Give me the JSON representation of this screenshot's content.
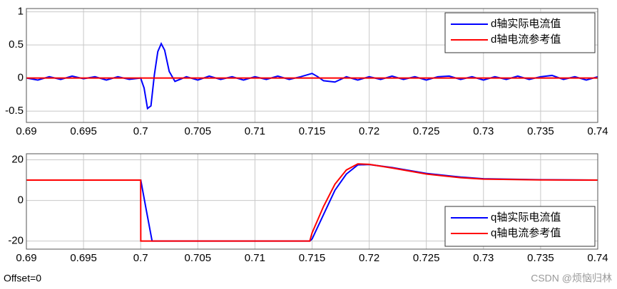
{
  "chart_data": [
    {
      "type": "line",
      "x": [
        0.69,
        0.691,
        0.692,
        0.693,
        0.694,
        0.695,
        0.696,
        0.697,
        0.698,
        0.699,
        0.7,
        0.7003,
        0.7006,
        0.7009,
        0.7012,
        0.7015,
        0.7018,
        0.7021,
        0.7025,
        0.703,
        0.704,
        0.705,
        0.706,
        0.707,
        0.708,
        0.709,
        0.71,
        0.711,
        0.712,
        0.713,
        0.714,
        0.715,
        0.7155,
        0.716,
        0.717,
        0.718,
        0.719,
        0.72,
        0.721,
        0.722,
        0.723,
        0.724,
        0.725,
        0.726,
        0.727,
        0.728,
        0.729,
        0.73,
        0.731,
        0.732,
        0.733,
        0.734,
        0.735,
        0.736,
        0.737,
        0.738,
        0.739,
        0.74
      ],
      "series": [
        {
          "name": "d轴实际电流值",
          "color": "#0000ff",
          "values": [
            0,
            -0.03,
            0.02,
            -0.02,
            0.03,
            -0.01,
            0.02,
            -0.03,
            0.02,
            -0.02,
            0,
            -0.15,
            -0.46,
            -0.42,
            0.05,
            0.4,
            0.52,
            0.42,
            0.1,
            -0.05,
            0.02,
            -0.03,
            0.03,
            -0.02,
            0.02,
            -0.03,
            0.02,
            -0.02,
            0.03,
            -0.02,
            0.02,
            0.07,
            0.02,
            -0.04,
            -0.06,
            0.02,
            -0.03,
            0.02,
            -0.02,
            0.03,
            -0.02,
            0.02,
            -0.03,
            0.02,
            0.03,
            -0.02,
            0.02,
            -0.03,
            0.02,
            -0.02,
            0.03,
            -0.02,
            0.02,
            0.04,
            -0.02,
            0.02,
            -0.03,
            0.02
          ]
        },
        {
          "name": "d轴电流参考值",
          "color": "#ff0000",
          "values": [
            0,
            0,
            0,
            0,
            0,
            0,
            0,
            0,
            0,
            0,
            0,
            0,
            0,
            0,
            0,
            0,
            0,
            0,
            0,
            0,
            0,
            0,
            0,
            0,
            0,
            0,
            0,
            0,
            0,
            0,
            0,
            0,
            0,
            0,
            0,
            0,
            0,
            0,
            0,
            0,
            0,
            0,
            0,
            0,
            0,
            0,
            0,
            0,
            0,
            0,
            0,
            0,
            0,
            0,
            0,
            0,
            0,
            0
          ]
        }
      ],
      "xlim": [
        0.69,
        0.74
      ],
      "xticks": [
        0.69,
        0.695,
        0.7,
        0.705,
        0.71,
        0.715,
        0.72,
        0.725,
        0.73,
        0.735,
        0.74
      ],
      "ylim": [
        -0.67,
        1.05
      ],
      "yticks": [
        -0.5,
        0,
        0.5,
        1
      ],
      "grid": true,
      "legend": "upper-right"
    },
    {
      "type": "line",
      "x": [
        0.69,
        0.7,
        0.70001,
        0.7005,
        0.701,
        0.7148,
        0.715,
        0.716,
        0.717,
        0.718,
        0.719,
        0.72,
        0.722,
        0.725,
        0.728,
        0.73,
        0.735,
        0.74
      ],
      "series": [
        {
          "name": "q轴实际电流值",
          "color": "#0000ff",
          "values": [
            10,
            10,
            10,
            -5,
            -20,
            -20,
            -19,
            -7,
            5,
            13,
            17.5,
            17.7,
            16.2,
            13.3,
            11.5,
            10.7,
            10.2,
            10
          ]
        },
        {
          "name": "q轴电流参考值",
          "color": "#ff0000",
          "values": [
            10,
            10,
            -20,
            -20,
            -20,
            -20,
            -16,
            -3,
            8,
            15,
            18,
            17.8,
            16,
            13,
            11.2,
            10.5,
            10.1,
            10
          ]
        }
      ],
      "xlim": [
        0.69,
        0.74
      ],
      "xticks": [
        0.69,
        0.695,
        0.7,
        0.705,
        0.71,
        0.715,
        0.72,
        0.725,
        0.73,
        0.735,
        0.74
      ],
      "ylim": [
        -24,
        23
      ],
      "yticks": [
        -20,
        0,
        20
      ],
      "grid": true,
      "legend": "lower-right"
    }
  ],
  "footer": "Offset=0",
  "watermark": "CSDN @烦恼归林"
}
